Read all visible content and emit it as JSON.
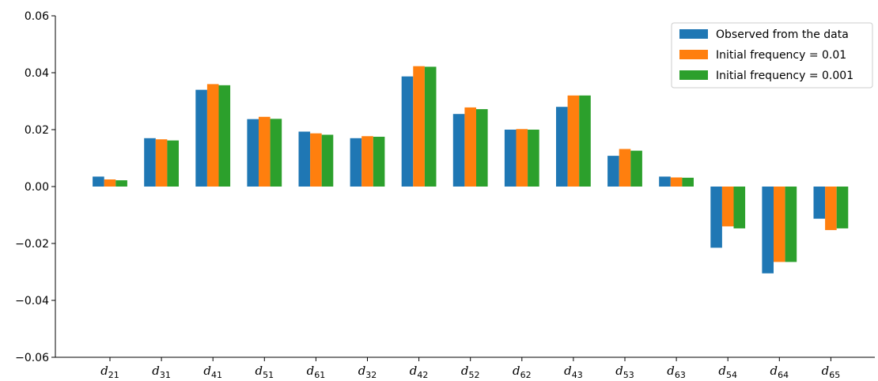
{
  "chart_data": {
    "type": "bar",
    "title": "",
    "xlabel": "",
    "ylabel": "",
    "ylim": [
      -0.06,
      0.06
    ],
    "yticks": [
      "-0.06",
      "-0.04",
      "-0.02",
      "0.00",
      "0.02",
      "0.04",
      "0.06"
    ],
    "grid": false,
    "legend_position": "top-right",
    "categories": [
      {
        "main": "d",
        "sub": "21"
      },
      {
        "main": "d",
        "sub": "31"
      },
      {
        "main": "d",
        "sub": "41"
      },
      {
        "main": "d",
        "sub": "51"
      },
      {
        "main": "d",
        "sub": "61"
      },
      {
        "main": "d",
        "sub": "32"
      },
      {
        "main": "d",
        "sub": "42"
      },
      {
        "main": "d",
        "sub": "52"
      },
      {
        "main": "d",
        "sub": "62"
      },
      {
        "main": "d",
        "sub": "43"
      },
      {
        "main": "d",
        "sub": "53"
      },
      {
        "main": "d",
        "sub": "63"
      },
      {
        "main": "d",
        "sub": "54"
      },
      {
        "main": "d",
        "sub": "64"
      },
      {
        "main": "d",
        "sub": "65"
      }
    ],
    "series": [
      {
        "name": "Observed from the data",
        "color": "#1f77b4",
        "values": [
          0.0035,
          0.017,
          0.034,
          0.0237,
          0.0193,
          0.017,
          0.0387,
          0.0255,
          0.02,
          0.028,
          0.0108,
          0.0035,
          -0.0215,
          -0.0305,
          -0.0113
        ]
      },
      {
        "name": "Initial frequency = 0.01",
        "color": "#ff7f0e",
        "values": [
          0.0025,
          0.0166,
          0.036,
          0.0245,
          0.0187,
          0.0177,
          0.0423,
          0.0278,
          0.0202,
          0.032,
          0.0132,
          0.0032,
          -0.014,
          -0.0265,
          -0.0153
        ]
      },
      {
        "name": "Initial frequency = 0.001",
        "color": "#2ca02c",
        "values": [
          0.0022,
          0.0162,
          0.0356,
          0.0238,
          0.0182,
          0.0175,
          0.0421,
          0.0272,
          0.02,
          0.032,
          0.0126,
          0.0031,
          -0.0147,
          -0.0265,
          -0.0147
        ]
      }
    ]
  }
}
